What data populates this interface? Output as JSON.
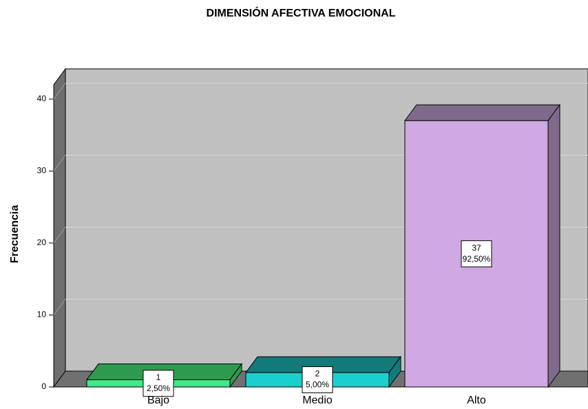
{
  "chart_data": {
    "type": "bar3d",
    "title": "DIMENSIÓN AFECTIVA EMOCIONAL",
    "y_label": "Frecuencia",
    "categories": [
      "Bajo",
      "Medio",
      "Alto"
    ],
    "values": [
      1,
      2,
      37
    ],
    "percent_values": [
      2.5,
      5,
      92.5
    ],
    "percent_labels": [
      "2,50%",
      "5,00%",
      "92,50%"
    ],
    "colors": [
      "#40e88a",
      "#1ccfcf",
      "#d0a8e4"
    ],
    "side_colors": [
      "#2e9a50",
      "#137a7a",
      "#7f6a8c"
    ],
    "ylim": [
      0,
      42
    ],
    "yticks": [
      0,
      10,
      20,
      30,
      40
    ],
    "grid": true
  }
}
